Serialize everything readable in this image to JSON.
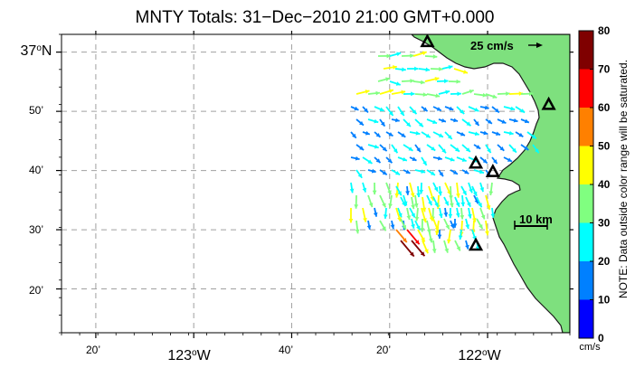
{
  "title": "MNTY Totals: 31−Dec−2010 21:00 GMT+0.000",
  "lat_labels": [
    {
      "deg": "37",
      "sup": "o",
      "hem": "N",
      "lat": 37.0
    },
    {
      "text": "50’",
      "lat": 36.8333
    },
    {
      "text": "40’",
      "lat": 36.6667
    },
    {
      "text": "30’",
      "lat": 36.5
    },
    {
      "text": "20’",
      "lat": 36.3333
    }
  ],
  "lon_labels": [
    {
      "text": "20’",
      "lon": -123.3333
    },
    {
      "deg": "123",
      "sup": "o",
      "hem": "W",
      "lon": -123.0
    },
    {
      "text": "40’",
      "lon": -122.6667
    },
    {
      "text": "20’",
      "lon": -122.3333
    },
    {
      "deg": "122",
      "sup": "o",
      "hem": "W",
      "lon": -122.0
    }
  ],
  "map_extent": {
    "lon_min": -123.45,
    "lon_max": -121.72,
    "lat_min": 36.21,
    "lat_max": 37.05
  },
  "reference_vector": {
    "label": "25 cm/s",
    "speed": 25
  },
  "scale_bar": {
    "label": "10 km"
  },
  "colorbar": {
    "ticks": [
      "80",
      "70",
      "60",
      "50",
      "40",
      "30",
      "20",
      "10",
      "0"
    ],
    "colors": [
      "#7f0000",
      "#ff0000",
      "#ff8000",
      "#ffff00",
      "#80ff80",
      "#00ffff",
      "#0080ff",
      "#0000ff"
    ],
    "note": "NOTE: Data outside color range will be saturated.",
    "units": "cm/s"
  },
  "colors": {
    "land": "#7ee07e",
    "coast": "#1a1a1a",
    "grid": "#a0a0a0"
  },
  "stations": [
    {
      "lon": -122.205,
      "lat": 37.03
    },
    {
      "lon": -121.792,
      "lat": 36.853
    },
    {
      "lon": -122.04,
      "lat": 36.688
    },
    {
      "lon": -121.982,
      "lat": 36.664
    },
    {
      "lon": -122.04,
      "lat": 36.457
    }
  ]
}
